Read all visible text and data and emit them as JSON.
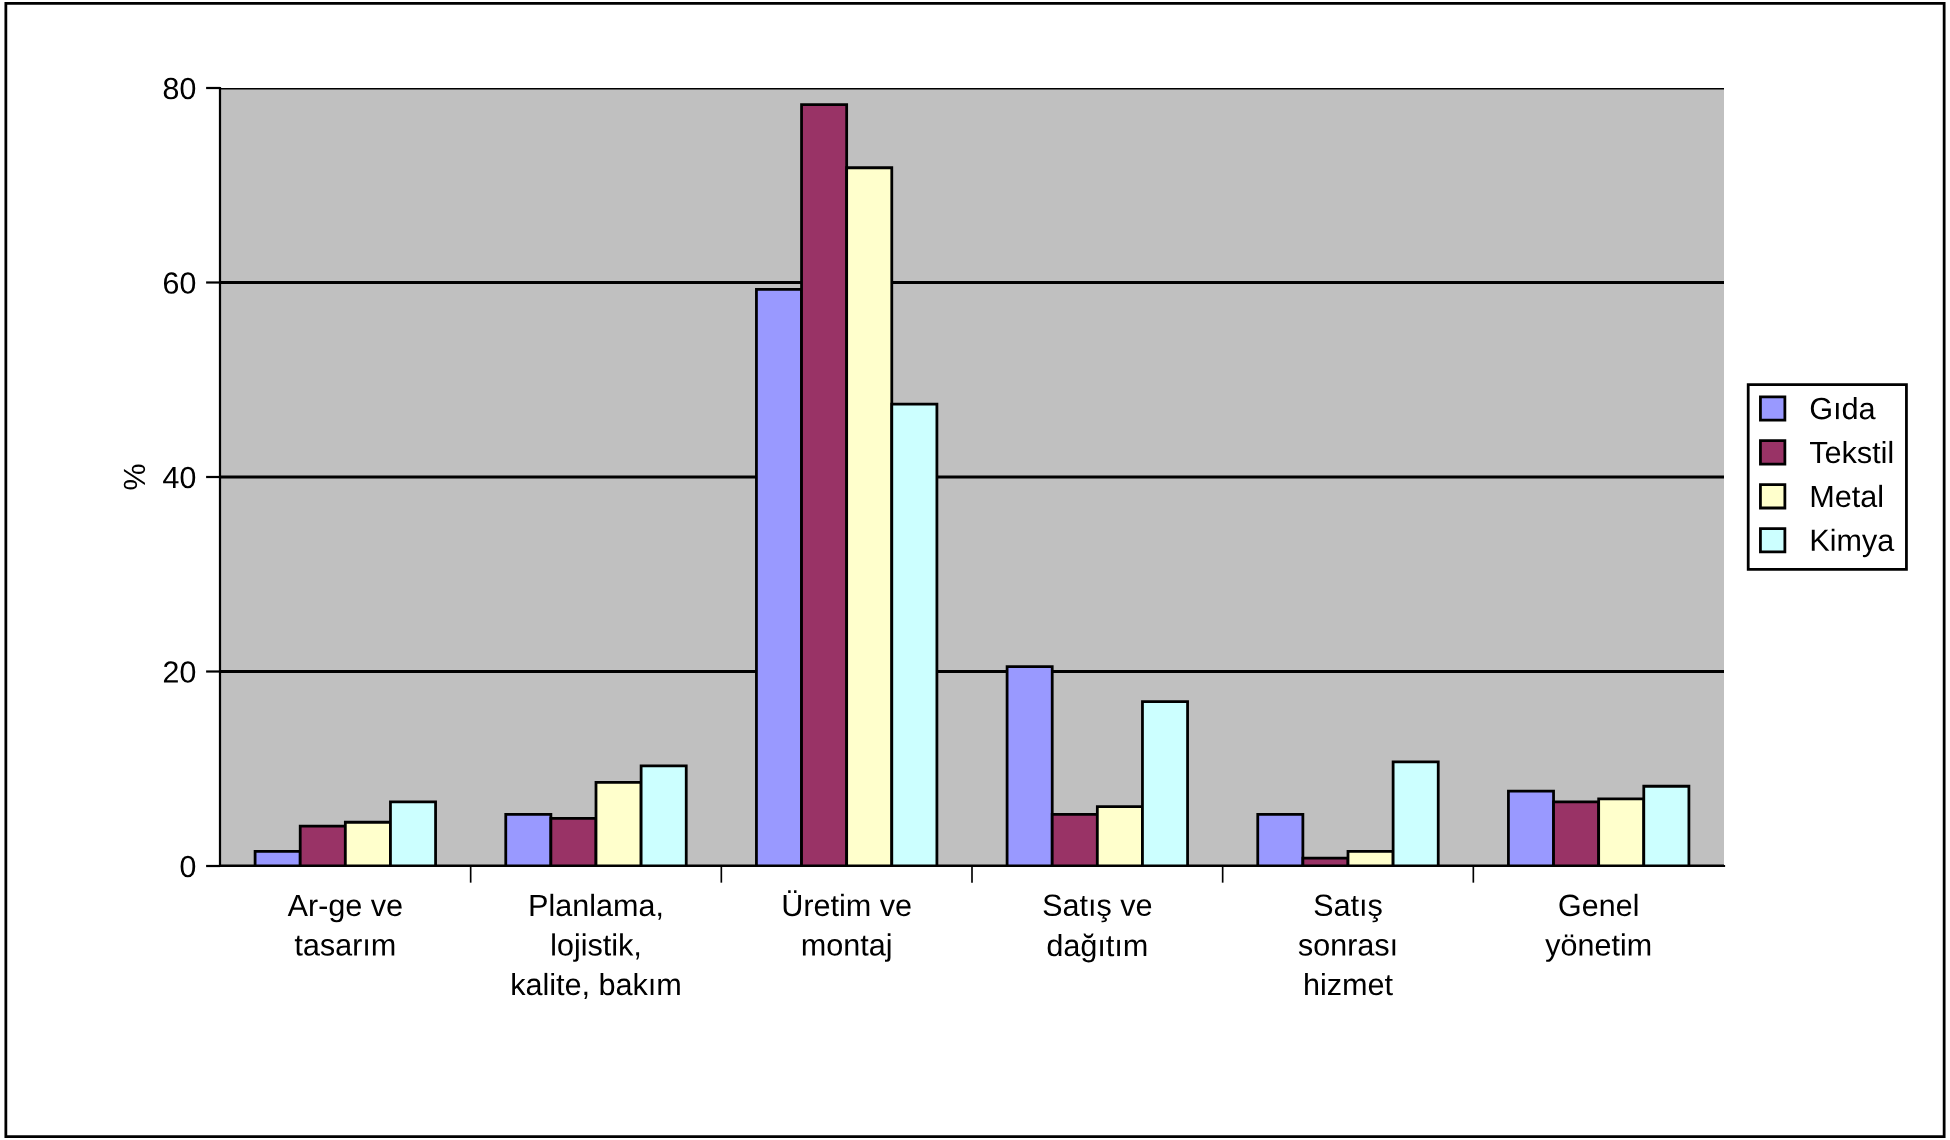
{
  "chart_data": {
    "type": "bar",
    "ylabel": "%",
    "categories": [
      "Ar-ge ve\ntasarım",
      "Planlama,\nlojistik,\nkalite, bakım",
      "Üretim ve\nmontaj",
      "Satış ve\ndağıtım",
      "Satış\nsonrası\nhizmet",
      "Genel\nyönetim"
    ],
    "series": [
      {
        "name": "Gıda",
        "color": "#9999ff",
        "values": [
          1.5,
          5.3,
          59.3,
          20.5,
          5.3,
          7.7
        ]
      },
      {
        "name": "Tekstil",
        "color": "#993366",
        "values": [
          4.1,
          4.9,
          78.3,
          5.3,
          0.8,
          6.6
        ]
      },
      {
        "name": "Metal",
        "color": "#ffffcc",
        "values": [
          4.5,
          8.6,
          71.8,
          6.1,
          1.5,
          6.9
        ]
      },
      {
        "name": "Kimya",
        "color": "#ccffff",
        "values": [
          6.6,
          10.3,
          47.5,
          16.9,
          10.7,
          8.2
        ]
      }
    ],
    "ylim": [
      0,
      80
    ],
    "yticks": [
      0,
      20,
      40,
      60,
      80
    ],
    "grid": "y",
    "legend": "right"
  }
}
